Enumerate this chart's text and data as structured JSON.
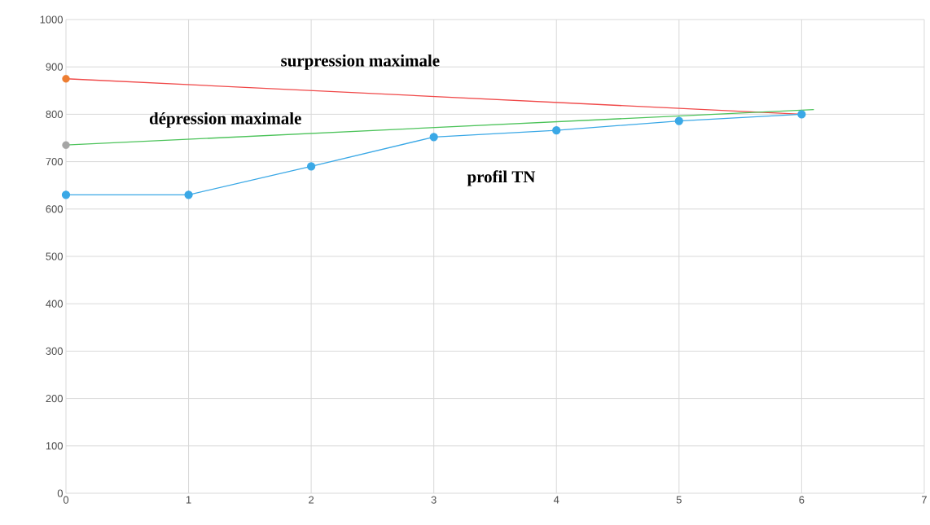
{
  "chart_data": {
    "type": "line",
    "xlim": [
      0,
      7
    ],
    "ylim": [
      0,
      1000
    ],
    "xticks": [
      0,
      1,
      2,
      3,
      4,
      5,
      6,
      7
    ],
    "yticks": [
      0,
      100,
      200,
      300,
      400,
      500,
      600,
      700,
      800,
      900,
      1000
    ],
    "grid": true,
    "line_style": "solid",
    "series": [
      {
        "name": "surpression maximale",
        "color": "#f04848",
        "x": [
          0,
          6
        ],
        "values": [
          875,
          800
        ],
        "marker": "none"
      },
      {
        "name": "dépression maximale",
        "color": "#4cc35a",
        "x": [
          0,
          6.1
        ],
        "values": [
          735,
          810
        ],
        "marker": "none"
      },
      {
        "name": "profil TN",
        "color": "#3aa8e6",
        "x": [
          0,
          1,
          2,
          3,
          4,
          5,
          6
        ],
        "values": [
          630,
          630,
          690,
          752,
          766,
          786,
          800
        ],
        "marker": "circle"
      },
      {
        "type": "scatter",
        "color": "#ed7d31",
        "x": [
          0
        ],
        "values": [
          875
        ],
        "marker": "circle"
      },
      {
        "type": "scatter",
        "color": "#a5a5a5",
        "x": [
          0
        ],
        "values": [
          735
        ],
        "marker": "circle"
      }
    ]
  }
}
